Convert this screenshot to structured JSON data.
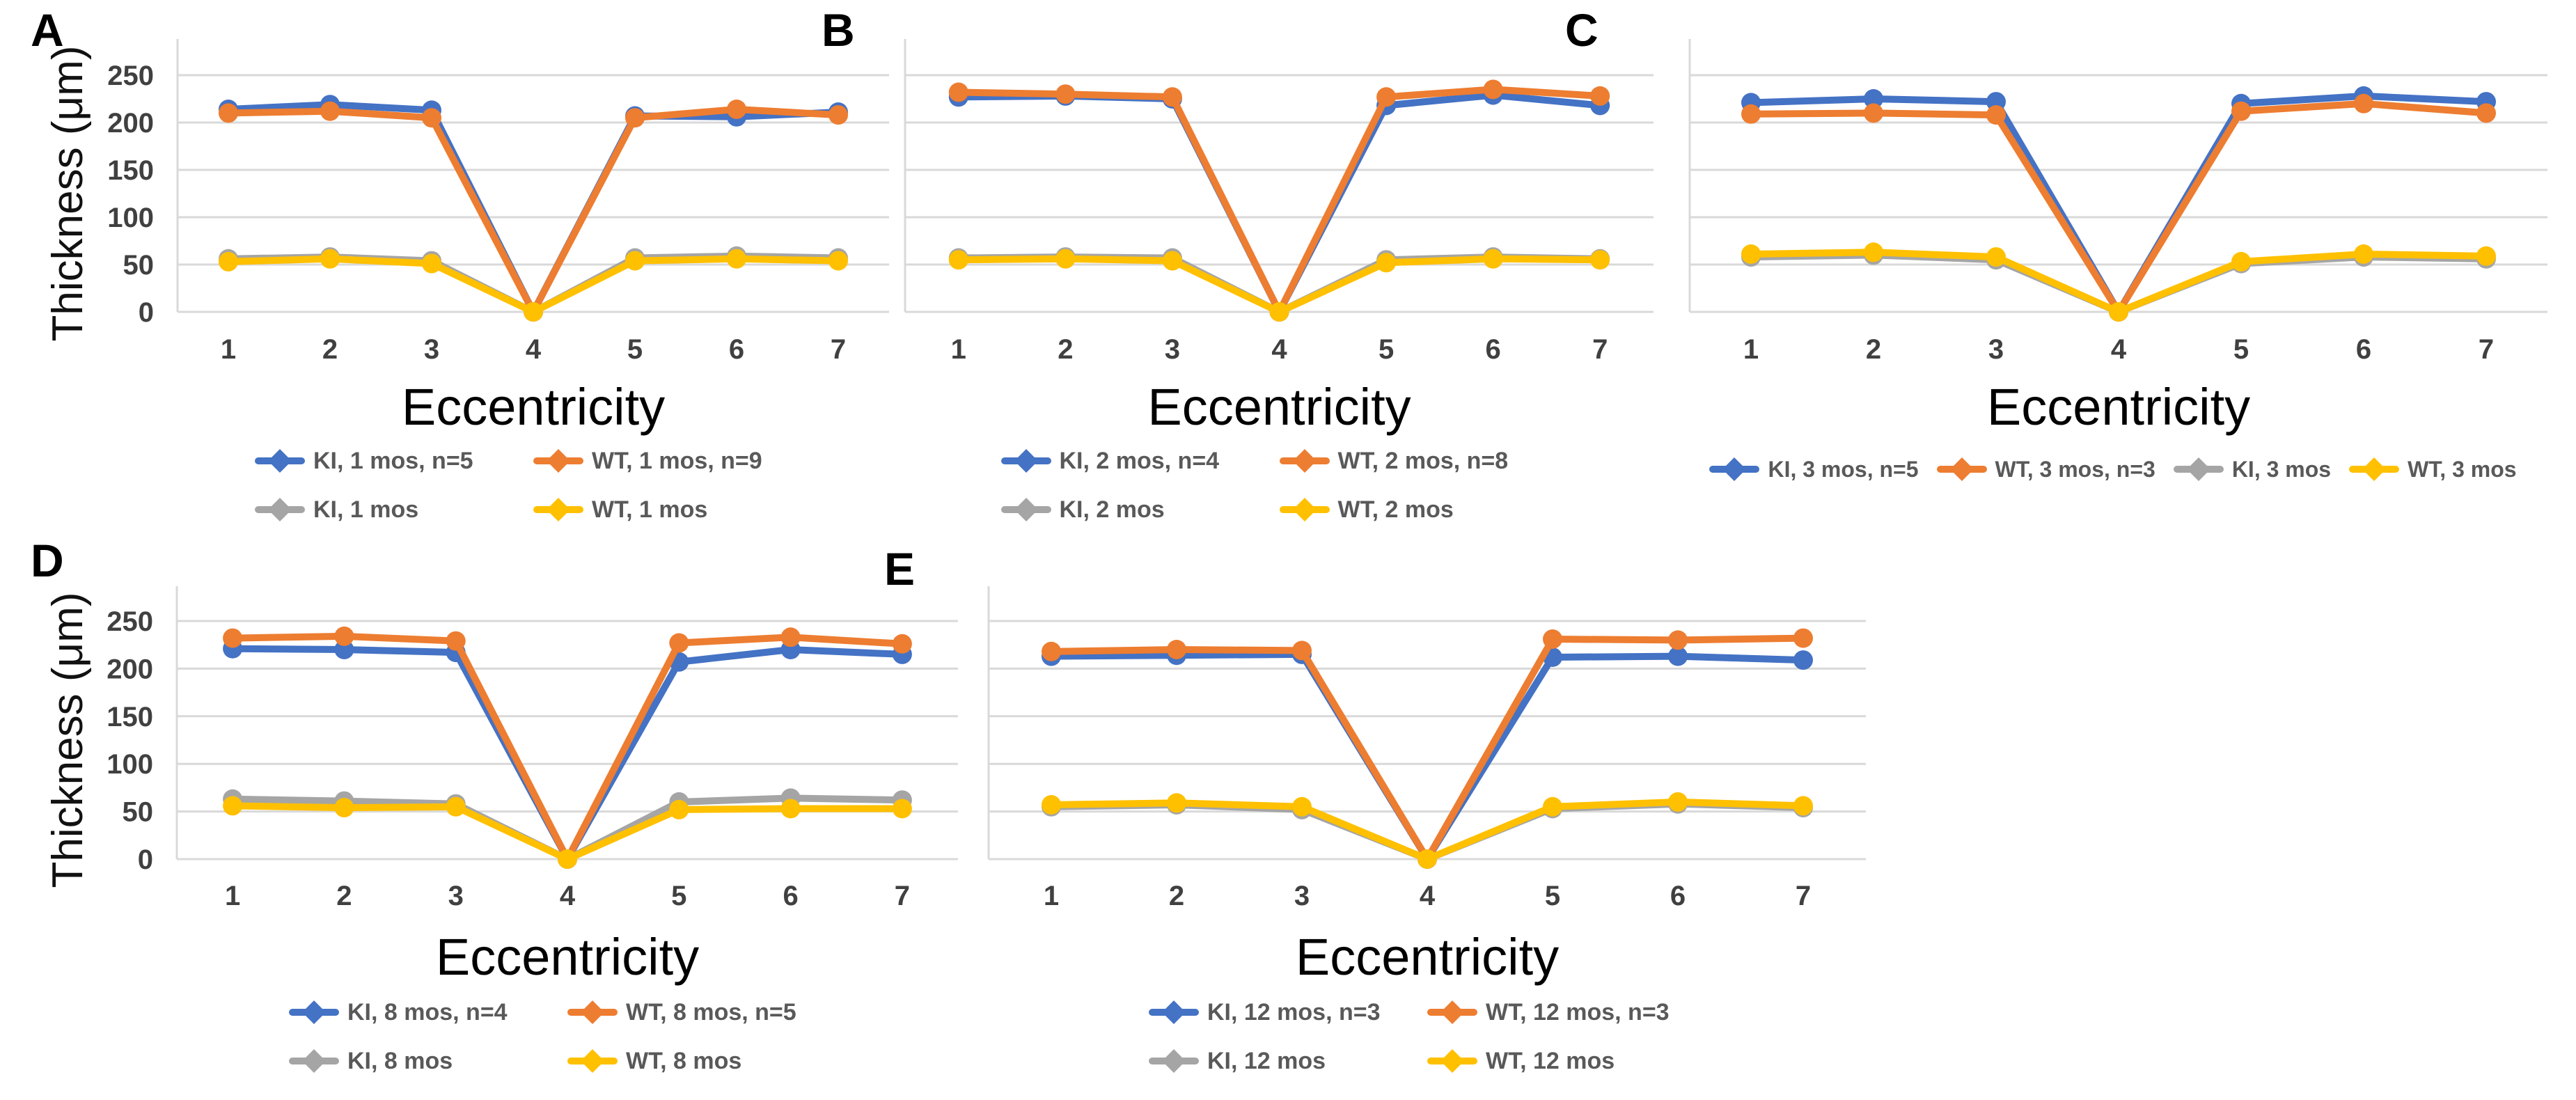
{
  "figure": {
    "background": "#FFFFFF",
    "x_axis_title": "Eccentricity",
    "y_axis_title": "Thickness (μm)",
    "x_ticks": [
      1,
      2,
      3,
      4,
      5,
      6,
      7
    ],
    "y_ticks": [
      0,
      50,
      100,
      150,
      200,
      250
    ],
    "colors": {
      "ki_thick_blue": "#4472C4",
      "wt_thick_orange": "#ED7D31",
      "ki_thin_gray": "#A5A5A5",
      "wt_thin_yellow": "#FFC000",
      "gridline": "#D9D9D9",
      "axis_tick_text": "#404040",
      "legend_text": "#595959",
      "panel_label_text": "#000000"
    }
  },
  "chart_data": [
    {
      "panel_label": "A",
      "type": "line",
      "xlabel": "Eccentricity",
      "ylabel": "Thickness (μm)",
      "x": [
        1,
        2,
        3,
        4,
        5,
        6,
        7
      ],
      "ylim": [
        0,
        250
      ],
      "grid": true,
      "legend_position": "bottom",
      "legend_layout": "2x2",
      "show_y_axis": true,
      "series": [
        {
          "name": "KI, 1 mos, n=5",
          "color": "#4472C4",
          "values": [
            214,
            219,
            213,
            0,
            207,
            206,
            211
          ]
        },
        {
          "name": "WT, 1 mos, n=9",
          "color": "#ED7D31",
          "values": [
            210,
            212,
            205,
            0,
            205,
            214,
            208
          ]
        },
        {
          "name": "KI, 1 mos",
          "color": "#A5A5A5",
          "values": [
            56,
            58,
            54,
            0,
            57,
            59,
            57
          ]
        },
        {
          "name": "WT, 1 mos",
          "color": "#FFC000",
          "values": [
            53,
            56,
            51,
            0,
            54,
            56,
            54
          ]
        }
      ]
    },
    {
      "panel_label": "B",
      "type": "line",
      "xlabel": "Eccentricity",
      "ylabel": "Thickness (μm)",
      "x": [
        1,
        2,
        3,
        4,
        5,
        6,
        7
      ],
      "ylim": [
        0,
        250
      ],
      "grid": true,
      "legend_position": "bottom",
      "legend_layout": "2x2",
      "show_y_axis": false,
      "series": [
        {
          "name": "KI, 2 mos, n=4",
          "color": "#4472C4",
          "values": [
            227,
            228,
            225,
            0,
            218,
            229,
            218
          ]
        },
        {
          "name": "WT, 2 mos, n=8",
          "color": "#ED7D31",
          "values": [
            232,
            230,
            227,
            0,
            227,
            235,
            228
          ]
        },
        {
          "name": "KI, 2 mos",
          "color": "#A5A5A5",
          "values": [
            57,
            58,
            57,
            0,
            55,
            58,
            56
          ]
        },
        {
          "name": "WT, 2 mos",
          "color": "#FFC000",
          "values": [
            55,
            56,
            54,
            0,
            52,
            56,
            55
          ]
        }
      ]
    },
    {
      "panel_label": "C",
      "type": "line",
      "xlabel": "Eccentricity",
      "ylabel": "Thickness (μm)",
      "x": [
        1,
        2,
        3,
        4,
        5,
        6,
        7
      ],
      "ylim": [
        0,
        250
      ],
      "grid": true,
      "legend_position": "bottom",
      "legend_layout": "1x4",
      "show_y_axis": false,
      "series": [
        {
          "name": "KI, 3 mos, n=5",
          "color": "#4472C4",
          "values": [
            221,
            225,
            222,
            0,
            220,
            228,
            222
          ]
        },
        {
          "name": "WT, 3 mos, n=3",
          "color": "#ED7D31",
          "values": [
            209,
            210,
            208,
            0,
            212,
            220,
            210
          ]
        },
        {
          "name": "KI, 3 mos",
          "color": "#A5A5A5",
          "values": [
            58,
            60,
            55,
            0,
            51,
            58,
            56
          ]
        },
        {
          "name": "WT, 3 mos",
          "color": "#FFC000",
          "values": [
            61,
            63,
            58,
            0,
            53,
            61,
            59
          ]
        }
      ]
    },
    {
      "panel_label": "D",
      "type": "line",
      "xlabel": "Eccentricity",
      "ylabel": "Thickness (μm)",
      "x": [
        1,
        2,
        3,
        4,
        5,
        6,
        7
      ],
      "ylim": [
        0,
        250
      ],
      "grid": true,
      "legend_position": "bottom",
      "legend_layout": "2x2",
      "show_y_axis": true,
      "series": [
        {
          "name": "KI, 8 mos, n=4",
          "color": "#4472C4",
          "values": [
            221,
            220,
            217,
            0,
            207,
            220,
            215
          ]
        },
        {
          "name": "WT, 8 mos, n=5",
          "color": "#ED7D31",
          "values": [
            232,
            234,
            229,
            0,
            227,
            233,
            226
          ]
        },
        {
          "name": "KI, 8 mos",
          "color": "#A5A5A5",
          "values": [
            63,
            61,
            58,
            0,
            60,
            64,
            62
          ]
        },
        {
          "name": "WT, 8 mos",
          "color": "#FFC000",
          "values": [
            56,
            54,
            55,
            0,
            52,
            53,
            53
          ]
        }
      ]
    },
    {
      "panel_label": "E",
      "type": "line",
      "xlabel": "Eccentricity",
      "ylabel": "Thickness (μm)",
      "x": [
        1,
        2,
        3,
        4,
        5,
        6,
        7
      ],
      "ylim": [
        0,
        250
      ],
      "grid": true,
      "legend_position": "bottom",
      "legend_layout": "2x2",
      "show_y_axis": false,
      "series": [
        {
          "name": "KI, 12 mos, n=3",
          "color": "#4472C4",
          "values": [
            213,
            214,
            215,
            0,
            212,
            213,
            209
          ]
        },
        {
          "name": "WT, 12 mos, n=3",
          "color": "#ED7D31",
          "values": [
            218,
            220,
            219,
            0,
            231,
            230,
            232
          ]
        },
        {
          "name": "KI, 12 mos",
          "color": "#A5A5A5",
          "values": [
            55,
            57,
            52,
            0,
            53,
            58,
            54
          ]
        },
        {
          "name": "WT, 12 mos",
          "color": "#FFC000",
          "values": [
            57,
            59,
            55,
            0,
            55,
            60,
            56
          ]
        }
      ]
    }
  ]
}
